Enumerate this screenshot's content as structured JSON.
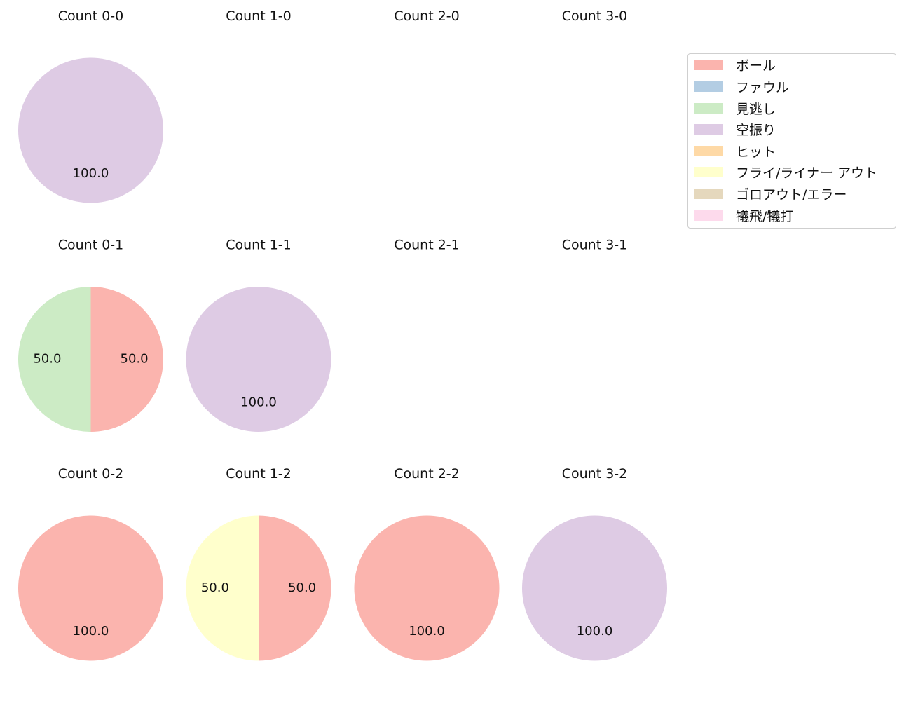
{
  "chart_data": {
    "type": "pie",
    "series_names": [
      "ボール",
      "ファウル",
      "見逃し",
      "空振り",
      "ヒット",
      "フライ/ライナー アウト",
      "ゴロアウト/エラー",
      "犠飛/犠打"
    ],
    "colors": [
      "#fbb4ae",
      "#b3cde3",
      "#ccebc5",
      "#decbe4",
      "#fed9a6",
      "#ffffcc",
      "#e5d8bd",
      "#fddaec"
    ],
    "legend_position": "top-right",
    "charts": [
      {
        "title": "Count 0-0",
        "values": [
          0,
          0,
          0,
          100,
          0,
          0,
          0,
          0
        ]
      },
      {
        "title": "Count 1-0",
        "values": []
      },
      {
        "title": "Count 2-0",
        "values": []
      },
      {
        "title": "Count 3-0",
        "values": []
      },
      {
        "title": "Count 0-1",
        "values": [
          50,
          0,
          50,
          0,
          0,
          0,
          0,
          0
        ]
      },
      {
        "title": "Count 1-1",
        "values": [
          0,
          0,
          0,
          100,
          0,
          0,
          0,
          0
        ]
      },
      {
        "title": "Count 2-1",
        "values": []
      },
      {
        "title": "Count 3-1",
        "values": []
      },
      {
        "title": "Count 0-2",
        "values": [
          100,
          0,
          0,
          0,
          0,
          0,
          0,
          0
        ]
      },
      {
        "title": "Count 1-2",
        "values": [
          50,
          0,
          0,
          0,
          0,
          50,
          0,
          0
        ]
      },
      {
        "title": "Count 2-2",
        "values": [
          100,
          0,
          0,
          0,
          0,
          0,
          0,
          0
        ]
      },
      {
        "title": "Count 3-2",
        "values": [
          0,
          0,
          0,
          100,
          0,
          0,
          0,
          0
        ]
      }
    ]
  }
}
